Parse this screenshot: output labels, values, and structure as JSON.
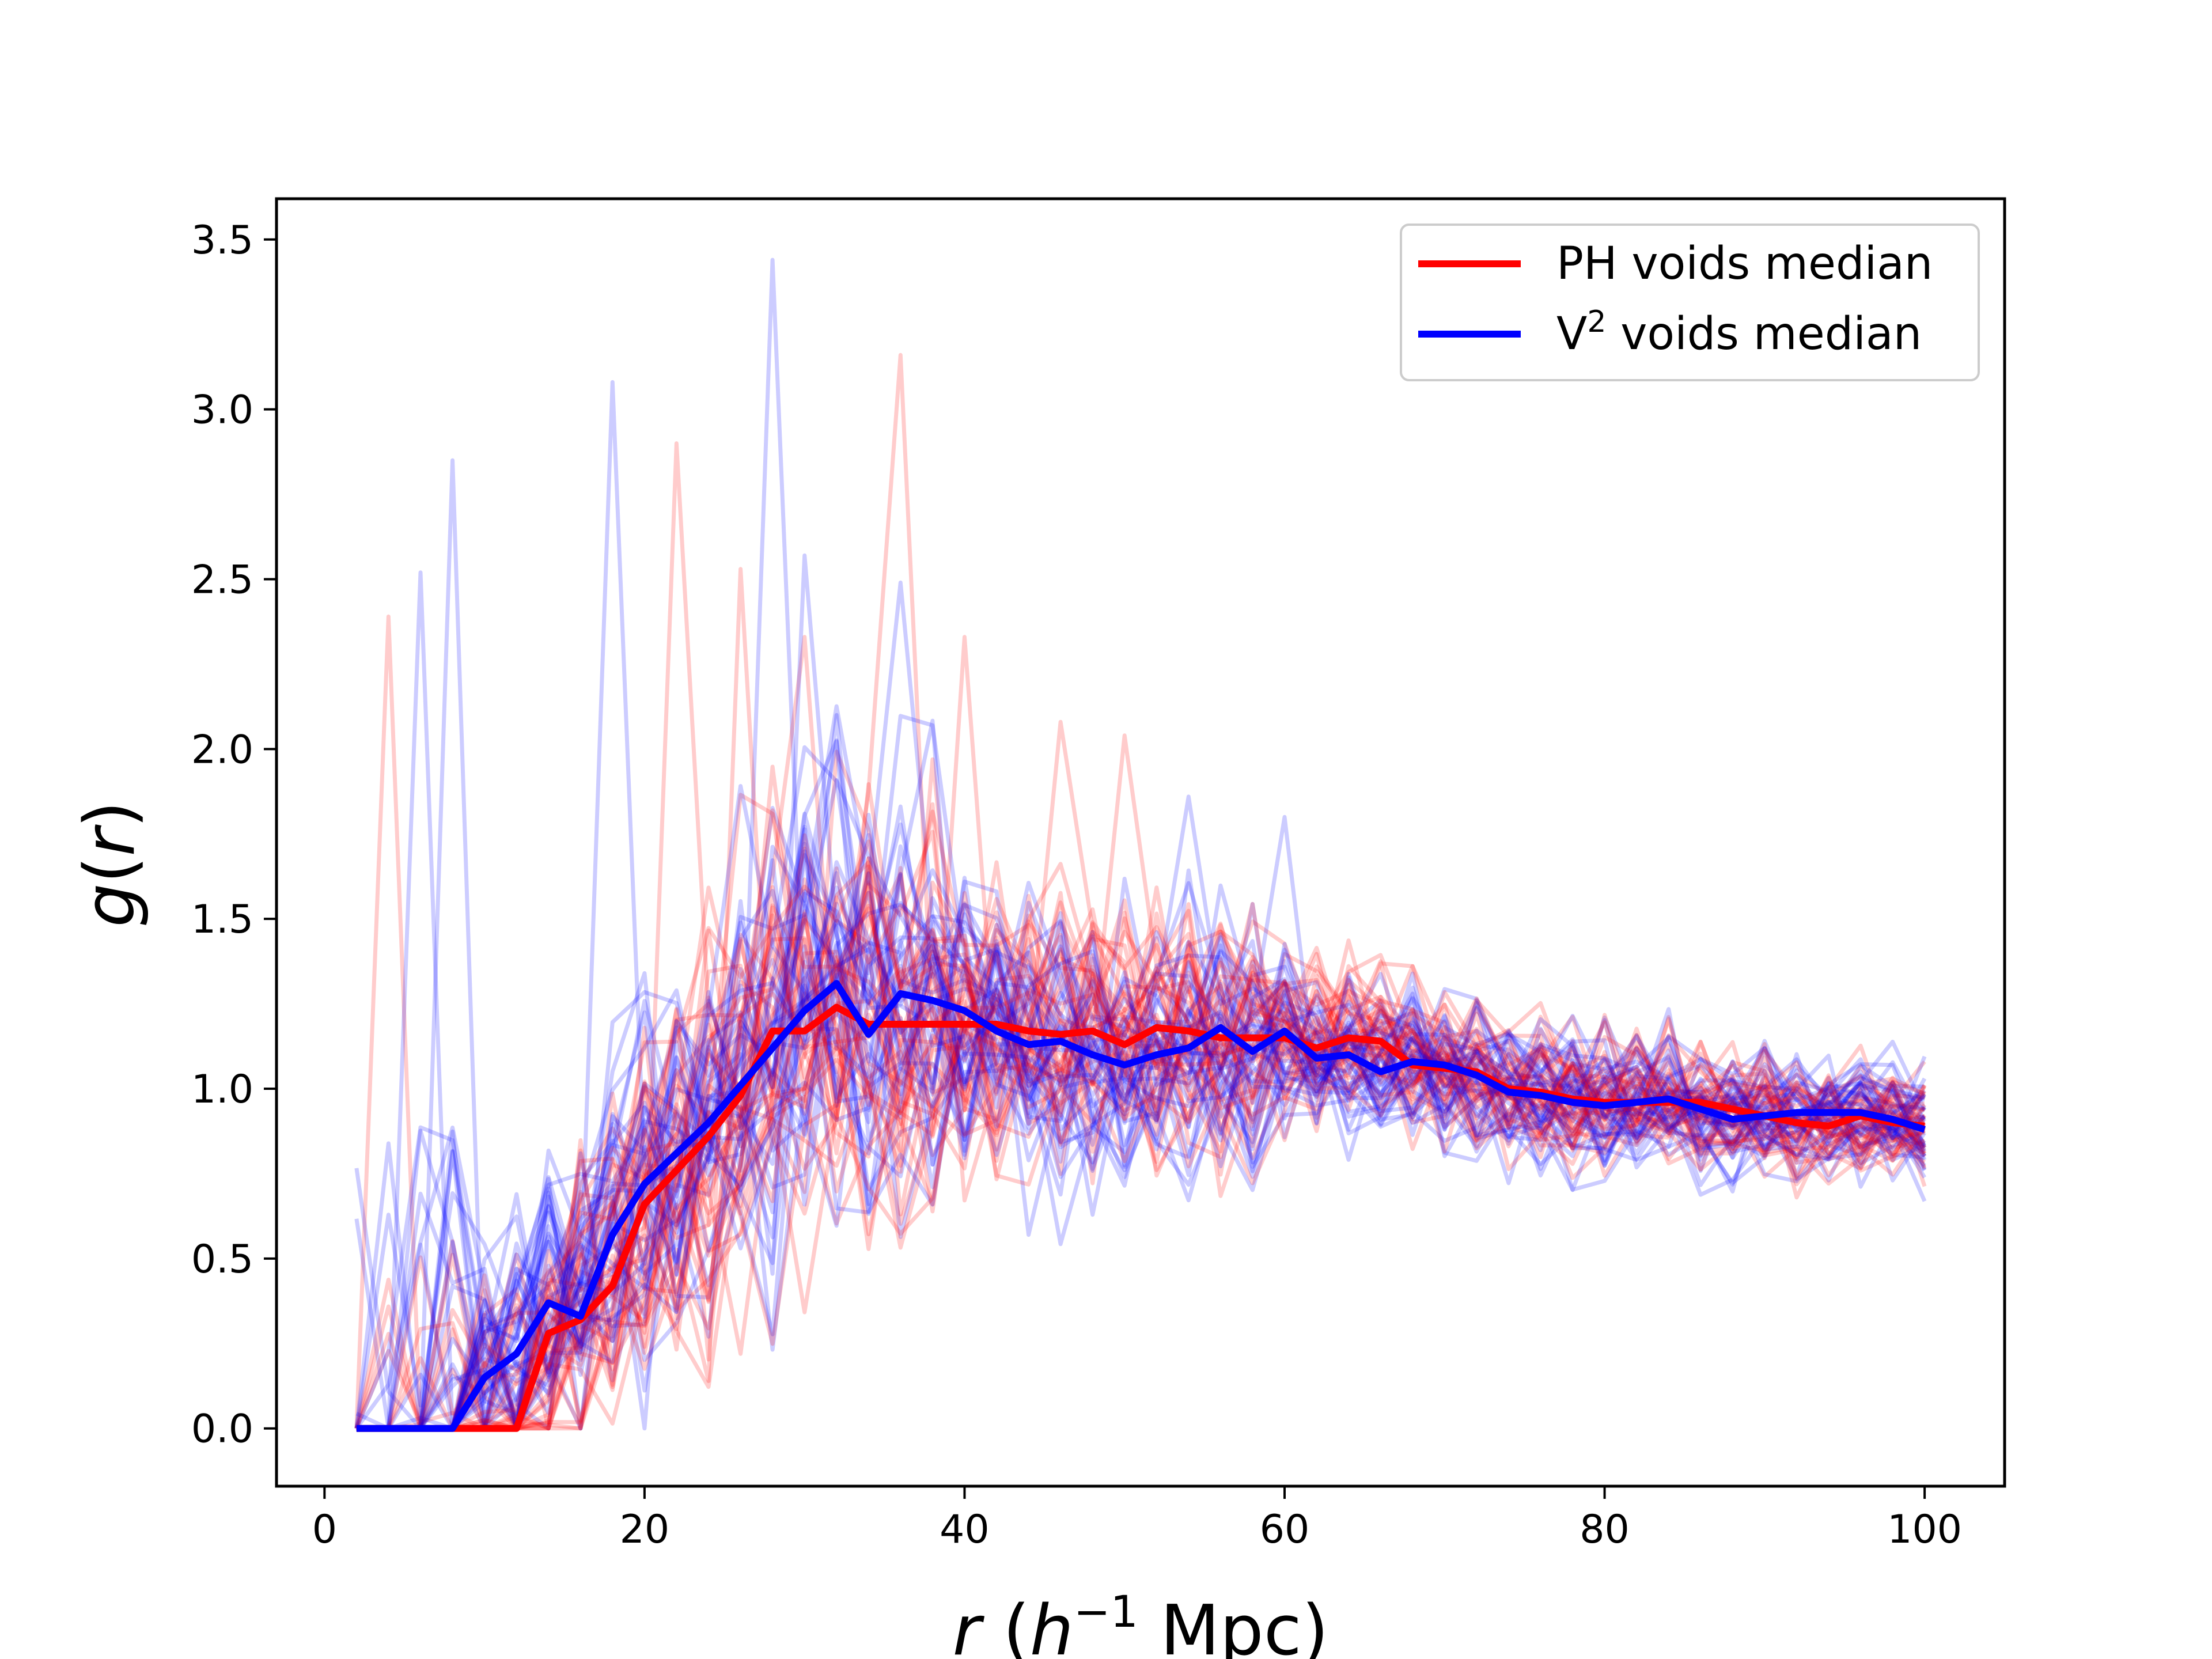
{
  "chart_data": {
    "type": "line",
    "xlabel": {
      "var": "r",
      "open": " (",
      "h": "h",
      "exp": "−1",
      "unit": " Mpc)"
    },
    "ylabel": {
      "func": "g",
      "open": "(",
      "var": "r",
      "close": ")"
    },
    "xlim": [
      -3,
      105
    ],
    "ylim": [
      -0.17,
      3.62
    ],
    "xticks": [
      0,
      20,
      40,
      60,
      80,
      100
    ],
    "xtick_labels": [
      "0",
      "20",
      "40",
      "60",
      "80",
      "100"
    ],
    "yticks": [
      0.0,
      0.5,
      1.0,
      1.5,
      2.0,
      2.5,
      3.0,
      3.5
    ],
    "ytick_labels": [
      "0.0",
      "0.5",
      "1.0",
      "1.5",
      "2.0",
      "2.5",
      "3.0",
      "3.5"
    ],
    "grid": false,
    "legend_position": "top-right",
    "legend": [
      {
        "text": "PH voids median",
        "color": "#ff0000"
      },
      {
        "text": "V",
        "sup": "2",
        "rest": " voids median",
        "color": "#0000ff"
      }
    ],
    "x": [
      2,
      4,
      6,
      8,
      10,
      12,
      14,
      16,
      18,
      20,
      22,
      24,
      26,
      28,
      30,
      32,
      34,
      36,
      38,
      40,
      42,
      44,
      46,
      48,
      50,
      52,
      54,
      56,
      58,
      60,
      62,
      64,
      66,
      68,
      70,
      72,
      74,
      76,
      78,
      80,
      82,
      84,
      86,
      88,
      90,
      92,
      94,
      96,
      98,
      100
    ],
    "median_series": [
      {
        "name": "PH voids median",
        "color": "#ff0000",
        "values": [
          0.0,
          0.0,
          0.0,
          0.0,
          0.0,
          0.0,
          0.28,
          0.32,
          0.42,
          0.66,
          0.76,
          0.86,
          0.98,
          1.17,
          1.17,
          1.24,
          1.19,
          1.19,
          1.19,
          1.19,
          1.19,
          1.17,
          1.16,
          1.17,
          1.13,
          1.18,
          1.17,
          1.15,
          1.15,
          1.15,
          1.12,
          1.15,
          1.14,
          1.07,
          1.06,
          1.05,
          1.0,
          0.99,
          0.97,
          0.96,
          0.96,
          0.96,
          0.96,
          0.94,
          0.92,
          0.9,
          0.89,
          0.92,
          0.9,
          0.89
        ]
      },
      {
        "name": "V2 voids median",
        "color": "#0000ff",
        "values": [
          0.0,
          0.0,
          0.0,
          0.0,
          0.15,
          0.22,
          0.37,
          0.33,
          0.57,
          0.72,
          0.81,
          0.9,
          1.01,
          1.12,
          1.23,
          1.31,
          1.16,
          1.28,
          1.26,
          1.23,
          1.17,
          1.13,
          1.14,
          1.1,
          1.07,
          1.1,
          1.12,
          1.18,
          1.11,
          1.17,
          1.09,
          1.1,
          1.05,
          1.08,
          1.07,
          1.04,
          0.99,
          0.98,
          0.96,
          0.95,
          0.96,
          0.97,
          0.94,
          0.91,
          0.92,
          0.93,
          0.93,
          0.93,
          0.91,
          0.88
        ]
      }
    ],
    "individual_series": {
      "count_per_color": 40,
      "line_alpha": 0.2,
      "ph_color": "#ff0000",
      "v2_color": "#0000ff",
      "ph_peaks": [
        {
          "x": 4,
          "y": 2.39
        },
        {
          "x": 22,
          "y": 2.9
        },
        {
          "x": 36,
          "y": 3.16
        },
        {
          "x": 26,
          "y": 2.53
        },
        {
          "x": 30,
          "y": 2.33
        },
        {
          "x": 40,
          "y": 2.33
        },
        {
          "x": 46,
          "y": 2.08
        },
        {
          "x": 50,
          "y": 2.04
        }
      ],
      "v2_peaks": [
        {
          "x": 8,
          "y": 2.85
        },
        {
          "x": 18,
          "y": 3.08
        },
        {
          "x": 28,
          "y": 3.44
        },
        {
          "x": 6,
          "y": 2.52
        },
        {
          "x": 30,
          "y": 2.57
        },
        {
          "x": 36,
          "y": 2.49
        },
        {
          "x": 54,
          "y": 1.86
        },
        {
          "x": 60,
          "y": 1.8
        }
      ]
    }
  }
}
